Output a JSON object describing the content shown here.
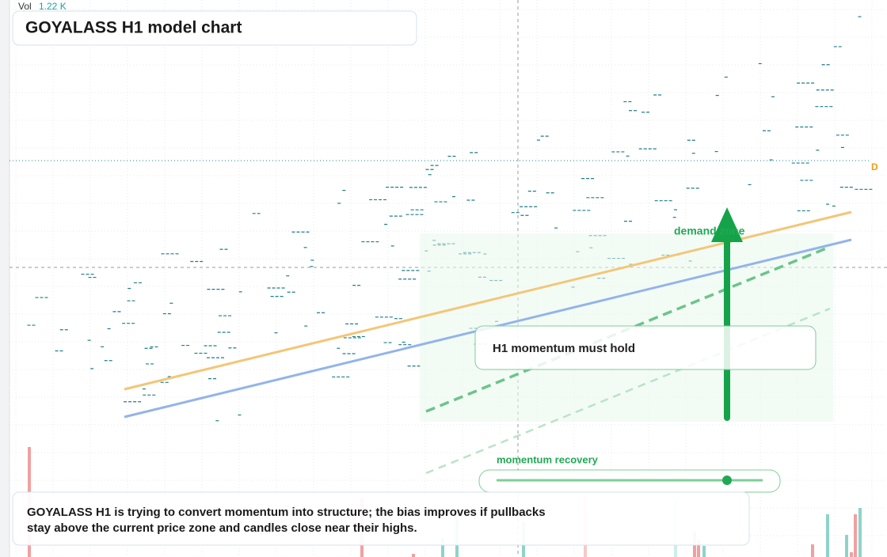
{
  "header": {
    "vol_label": "Vol",
    "vol_value": "1.22 K",
    "title": "GOYALASS H1 model chart"
  },
  "marker": "D",
  "annotations": {
    "zone_label": "demand zone",
    "callout": "H1 momentum must hold",
    "slider_label": "momentum recovery"
  },
  "caption": {
    "line1": "GOYALASS H1 is trying to convert momentum into structure; the bias improves if pullbacks",
    "line2": "stay above the current price zone and candles close near their highs."
  }
}
